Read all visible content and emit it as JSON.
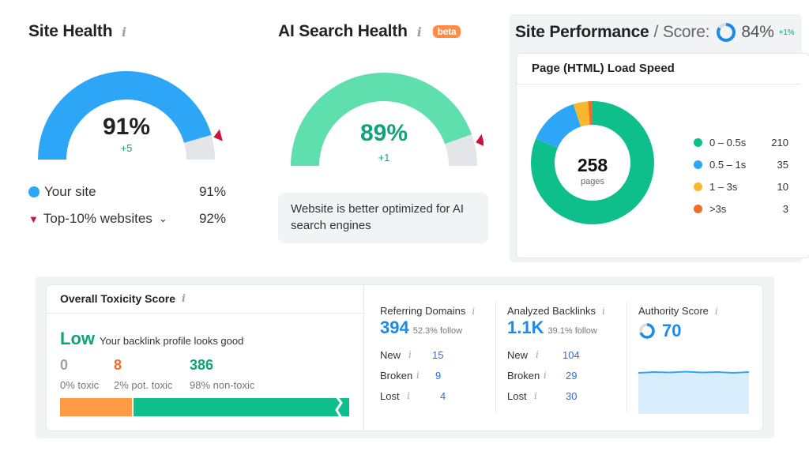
{
  "site_health": {
    "title": "Site Health",
    "value": "91%",
    "delta": "+5",
    "gauge_fraction": 0.91,
    "top_fraction": 0.92,
    "legend": [
      {
        "label": "Your site",
        "value": "91%",
        "color": "#2ea6f7"
      },
      {
        "label": "Top-10% websites",
        "value": "92%",
        "color": "#d0103a"
      }
    ]
  },
  "ai_health": {
    "title": "AI Search Health",
    "badge": "beta",
    "value": "89%",
    "delta": "+1",
    "gauge_fraction": 0.89,
    "message": "Website is better optimized for AI search engines"
  },
  "site_performance": {
    "title": "Site Performance",
    "score_label": "/ Score:",
    "score": "84%",
    "score_fraction": 0.84,
    "score_delta": "+1%",
    "card_title": "Page (HTML) Load Speed",
    "total": "258",
    "total_label": "pages",
    "legend": [
      {
        "label": "0 – 0.5s",
        "count": "210",
        "color": "#0ebf8c"
      },
      {
        "label": "0.5 – 1s",
        "count": "35",
        "color": "#2ea6f7"
      },
      {
        "label": "1 – 3s",
        "count": "10",
        "color": "#f7b82f"
      },
      {
        "label": ">3s",
        "count": "3",
        "color": "#f26b2a"
      }
    ]
  },
  "toxicity": {
    "title": "Overall Toxicity Score",
    "level": "Low",
    "level_note": "Your backlink profile looks good",
    "stats": [
      {
        "value": "0",
        "label": "0% toxic",
        "color": "#9aa0a6"
      },
      {
        "value": "8",
        "label": "2% pot. toxic",
        "color": "#f26b2a"
      },
      {
        "value": "386",
        "label": "98% non-toxic",
        "color": "#0ea37a"
      }
    ]
  },
  "referring_domains": {
    "title": "Referring Domains",
    "value": "394",
    "note": "52.3% follow",
    "rows": [
      {
        "label": "New",
        "value": "15"
      },
      {
        "label": "Broken",
        "value": "9"
      },
      {
        "label": "Lost",
        "value": "4"
      }
    ]
  },
  "analyzed_backlinks": {
    "title": "Analyzed Backlinks",
    "value": "1.1K",
    "note": "39.1% follow",
    "rows": [
      {
        "label": "New",
        "value": "104"
      },
      {
        "label": "Broken",
        "value": "29"
      },
      {
        "label": "Lost",
        "value": "30"
      }
    ]
  },
  "authority": {
    "title": "Authority Score",
    "value": "70",
    "fraction": 0.7
  }
}
